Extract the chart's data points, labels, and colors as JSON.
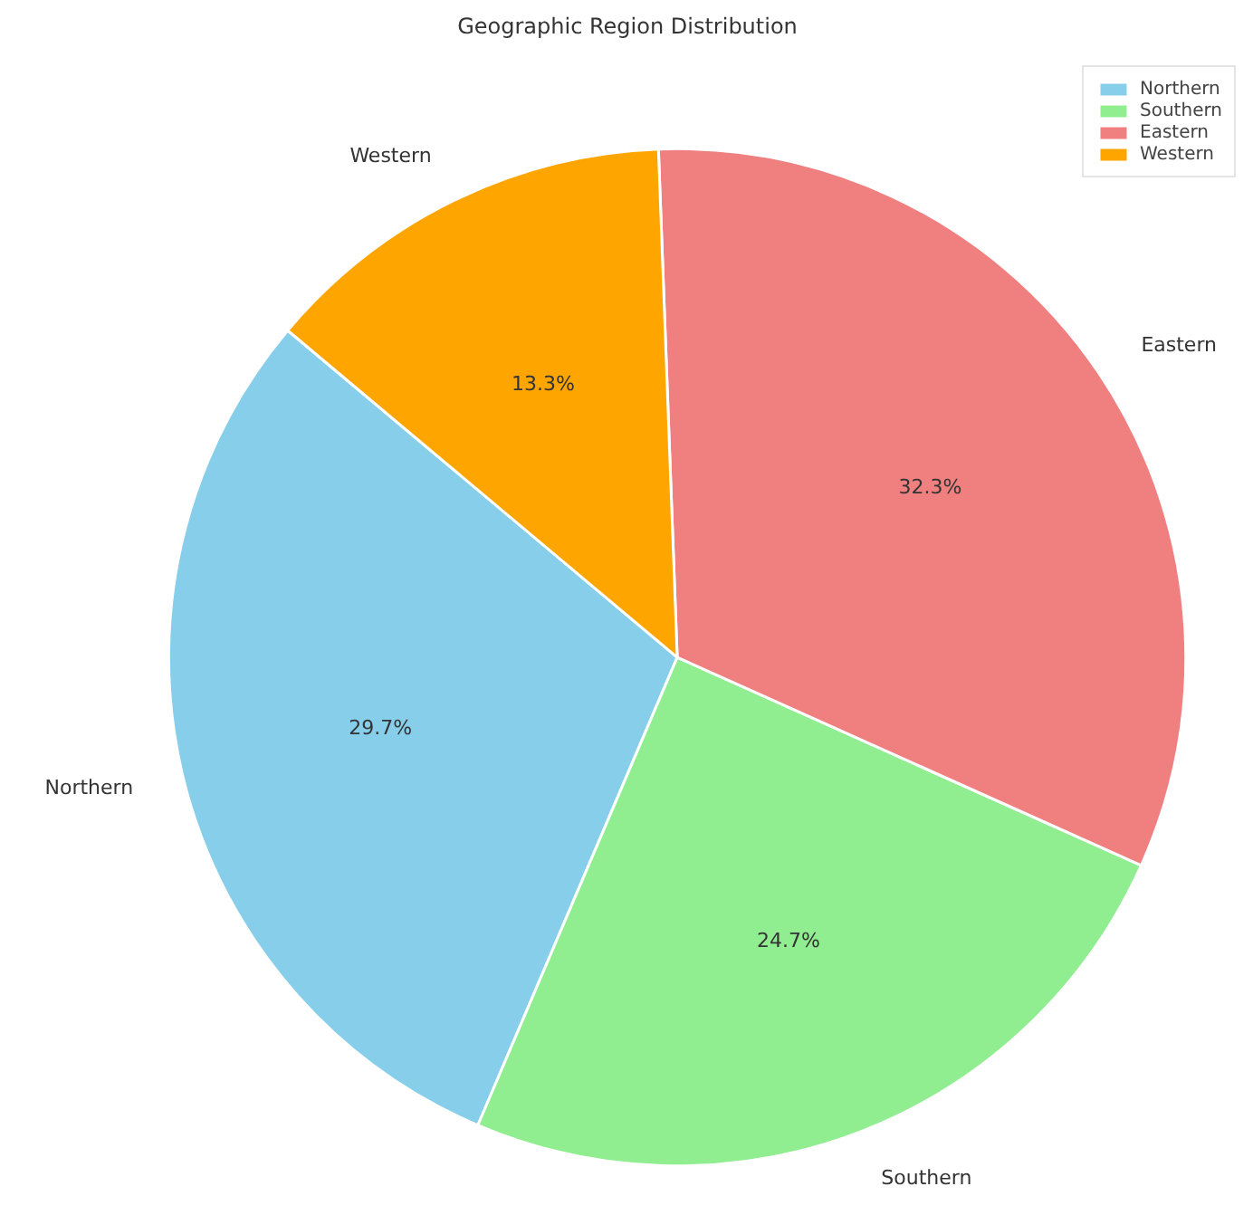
{
  "chart_data": {
    "type": "pie",
    "title": "Geographic Region Distribution",
    "categories": [
      "Northern",
      "Southern",
      "Eastern",
      "Western"
    ],
    "values": [
      29.7,
      24.7,
      32.3,
      13.3
    ],
    "colors": [
      "#87ceeb",
      "#90ee90",
      "#f08080",
      "#ffa500"
    ],
    "value_labels": [
      "29.7%",
      "24.7%",
      "32.3%",
      "13.3%"
    ],
    "legend": "top right"
  }
}
